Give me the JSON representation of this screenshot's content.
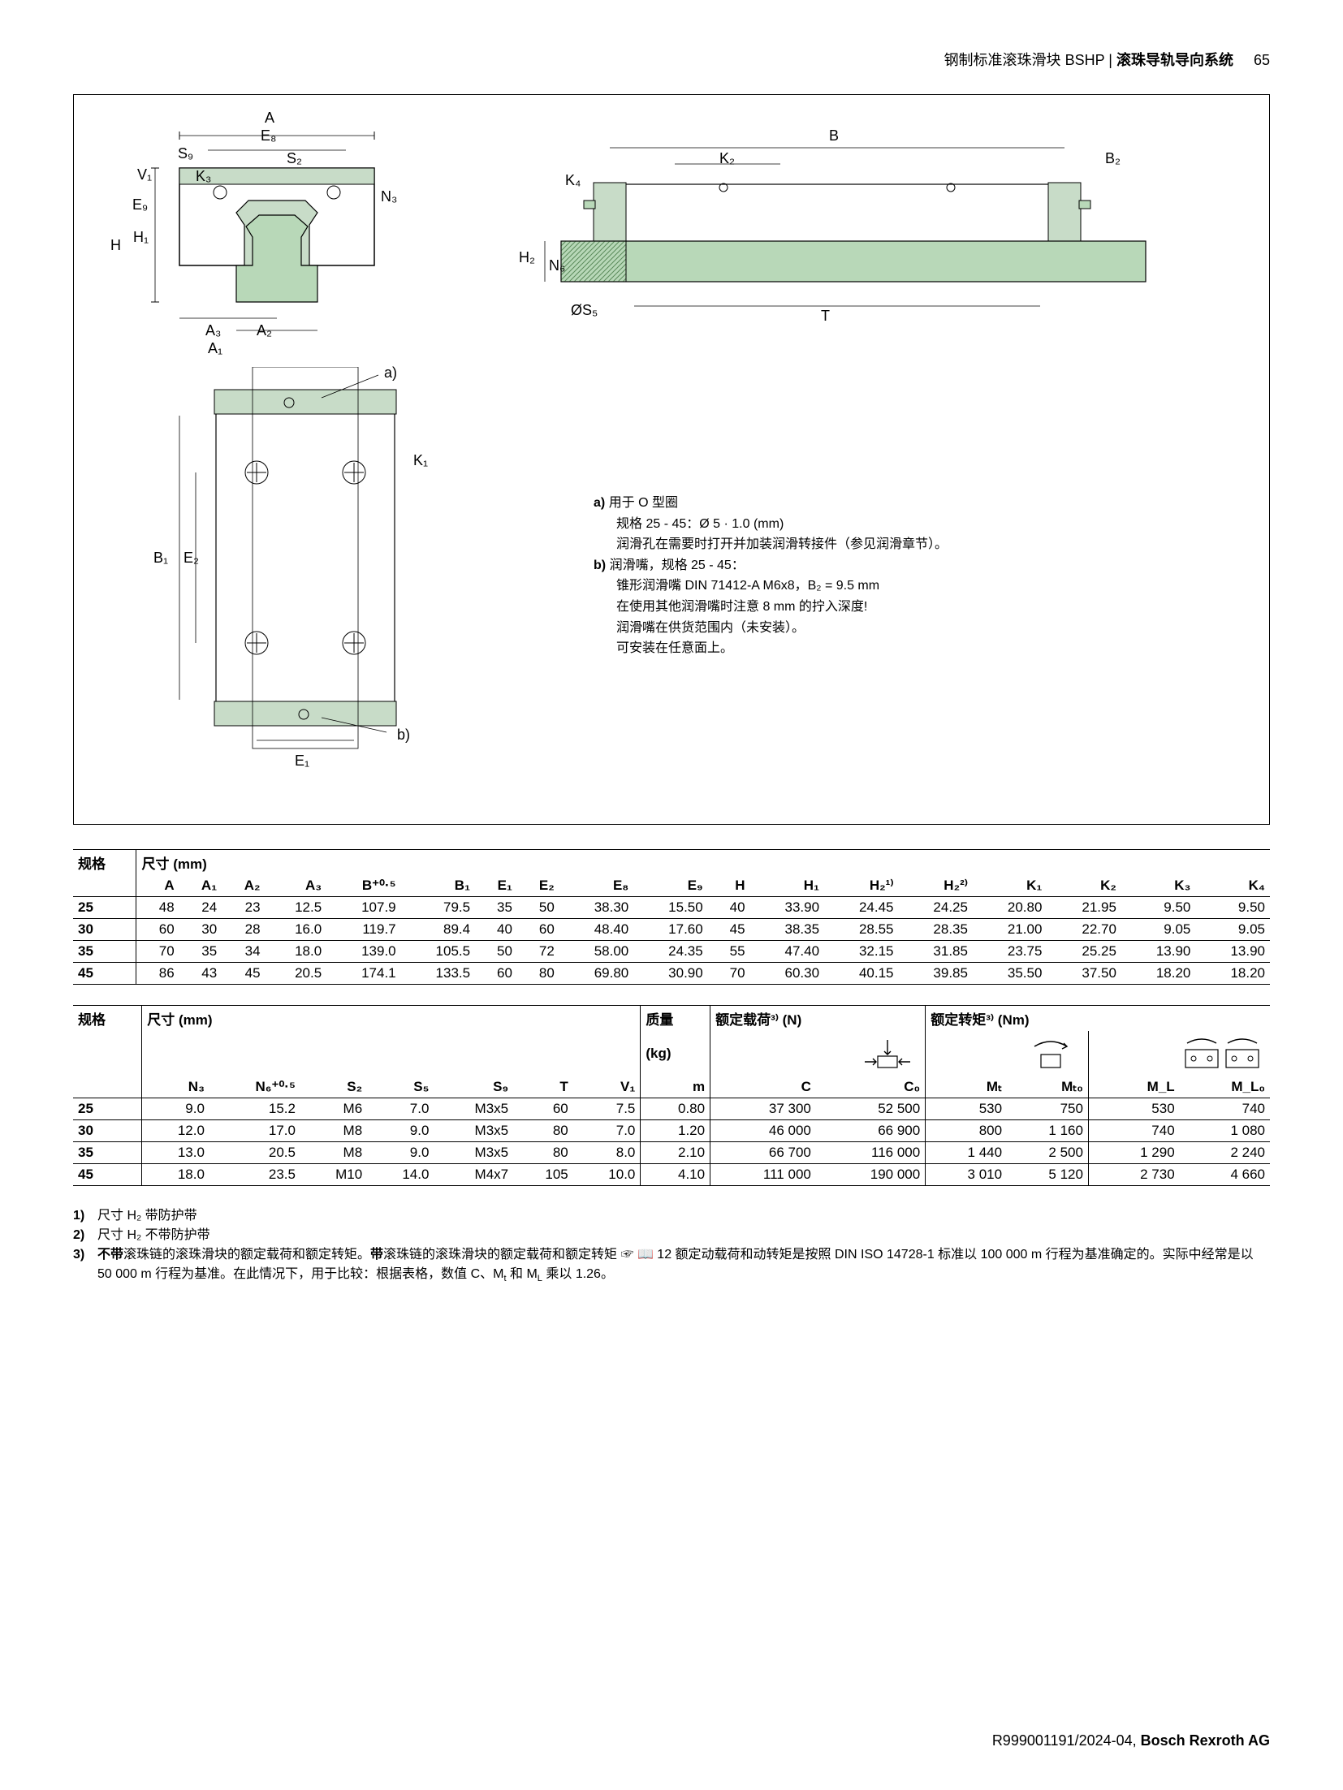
{
  "header": {
    "breadcrumb_left": "钢制标准滚珠滑块 BSHP",
    "breadcrumb_sep": " | ",
    "breadcrumb_right": "滚珠导轨导向系统",
    "page_number": "65"
  },
  "diagram": {
    "labels_front": [
      "A",
      "E₈",
      "S₉",
      "S₂",
      "V₁",
      "K₃",
      "E₉",
      "N₃",
      "H",
      "H₁",
      "A₃",
      "A₂",
      "A₁"
    ],
    "labels_side": [
      "B",
      "K₂",
      "B₂",
      "K₄",
      "H₂",
      "N₆",
      "ØS₅",
      "T"
    ],
    "labels_top": [
      "a)",
      "K₁",
      "B₁",
      "E₂",
      "E₁",
      "b)"
    ],
    "notes": {
      "a_label": "a)",
      "a_line1": "用于 O 型圈",
      "a_line2": "规格 25 - 45：Ø 5 · 1.0 (mm)",
      "a_line3": "润滑孔在需要时打开并加装润滑转接件（参见润滑章节）。",
      "b_label": "b)",
      "b_line1": "润滑嘴，规格 25 - 45：",
      "b_line2": "锥形润滑嘴 DIN 71412-A M6x8，B₂ = 9.5 mm",
      "b_line3": "在使用其他润滑嘴时注意 8 mm 的拧入深度!",
      "b_line4": "润滑嘴在供货范围内（未安装）。",
      "b_line5": "可安装在任意面上。"
    }
  },
  "table1": {
    "caption_left": "规格",
    "caption_right": "尺寸 (mm)",
    "headers": [
      "A",
      "A₁",
      "A₂",
      "A₃",
      "B⁺⁰·⁵",
      "B₁",
      "E₁",
      "E₂",
      "E₈",
      "E₉",
      "H",
      "H₁",
      "H₂¹⁾",
      "H₂²⁾",
      "K₁",
      "K₂",
      "K₃",
      "K₄"
    ],
    "rows": [
      {
        "size": "25",
        "v": [
          "48",
          "24",
          "23",
          "12.5",
          "107.9",
          "79.5",
          "35",
          "50",
          "38.30",
          "15.50",
          "40",
          "33.90",
          "24.45",
          "24.25",
          "20.80",
          "21.95",
          "9.50",
          "9.50"
        ]
      },
      {
        "size": "30",
        "v": [
          "60",
          "30",
          "28",
          "16.0",
          "119.7",
          "89.4",
          "40",
          "60",
          "48.40",
          "17.60",
          "45",
          "38.35",
          "28.55",
          "28.35",
          "21.00",
          "22.70",
          "9.05",
          "9.05"
        ]
      },
      {
        "size": "35",
        "v": [
          "70",
          "35",
          "34",
          "18.0",
          "139.0",
          "105.5",
          "50",
          "72",
          "58.00",
          "24.35",
          "55",
          "47.40",
          "32.15",
          "31.85",
          "23.75",
          "25.25",
          "13.90",
          "13.90"
        ]
      },
      {
        "size": "45",
        "v": [
          "86",
          "43",
          "45",
          "20.5",
          "174.1",
          "133.5",
          "60",
          "80",
          "69.80",
          "30.90",
          "70",
          "60.30",
          "40.15",
          "39.85",
          "35.50",
          "37.50",
          "18.20",
          "18.20"
        ]
      }
    ]
  },
  "table2": {
    "caption_left": "规格",
    "caption_dim": "尺寸 (mm)",
    "caption_mass": "质量",
    "caption_mass_unit": "(kg)",
    "caption_load": "额定载荷³⁾ (N)",
    "caption_torque": "额定转矩³⁾ (Nm)",
    "headers_dim": [
      "N₃",
      "N₆⁺⁰·⁵",
      "S₂",
      "S₅",
      "S₉",
      "T",
      "V₁"
    ],
    "header_mass": "m",
    "headers_load": [
      "C",
      "C₀"
    ],
    "headers_torque": [
      "Mₜ",
      "Mₜ₀",
      "M_L",
      "M_L₀"
    ],
    "rows": [
      {
        "size": "25",
        "dim": [
          "9.0",
          "15.2",
          "M6",
          "7.0",
          "M3x5",
          "60",
          "7.5"
        ],
        "m": "0.80",
        "load": [
          "37 300",
          "52 500"
        ],
        "tq": [
          "530",
          "750",
          "530",
          "740"
        ]
      },
      {
        "size": "30",
        "dim": [
          "12.0",
          "17.0",
          "M8",
          "9.0",
          "M3x5",
          "80",
          "7.0"
        ],
        "m": "1.20",
        "load": [
          "46 000",
          "66 900"
        ],
        "tq": [
          "800",
          "1 160",
          "740",
          "1 080"
        ]
      },
      {
        "size": "35",
        "dim": [
          "13.0",
          "20.5",
          "M8",
          "9.0",
          "M3x5",
          "80",
          "8.0"
        ],
        "m": "2.10",
        "load": [
          "66 700",
          "116 000"
        ],
        "tq": [
          "1 440",
          "2 500",
          "1 290",
          "2 240"
        ]
      },
      {
        "size": "45",
        "dim": [
          "18.0",
          "23.5",
          "M10",
          "14.0",
          "M4x7",
          "105",
          "10.0"
        ],
        "m": "4.10",
        "load": [
          "111 000",
          "190 000"
        ],
        "tq": [
          "3 010",
          "5 120",
          "2 730",
          "4 660"
        ]
      }
    ]
  },
  "footnotes": {
    "n1": "1)",
    "t1": "尺寸 H₂ 带防护带",
    "n2": "2)",
    "t2": "尺寸 H₂ 不带防护带",
    "n3": "3)",
    "t3": "不带滚珠链的滚珠滑块的额定载荷和额定转矩。带滚珠链的滚珠滑块的额定载荷和额定转矩 ☞ 📖 12 额定动载荷和动转矩是按照 DIN ISO 14728-1 标准以 100 000 m 行程为基准确定的。实际中经常是以 50 000 m 行程为基准。在此情况下，用于比较：根据表格，数值 C、Mₜ 和 M_L 乘以 1.26。"
  },
  "footer": {
    "docnum": "R999001191/2024-04, ",
    "company": "Bosch Rexroth AG"
  },
  "style": {
    "page_bg": "#ffffff",
    "border_color": "#000000",
    "rail_fill": "#b8d8b8",
    "block_fill": "#c8dcc8"
  }
}
